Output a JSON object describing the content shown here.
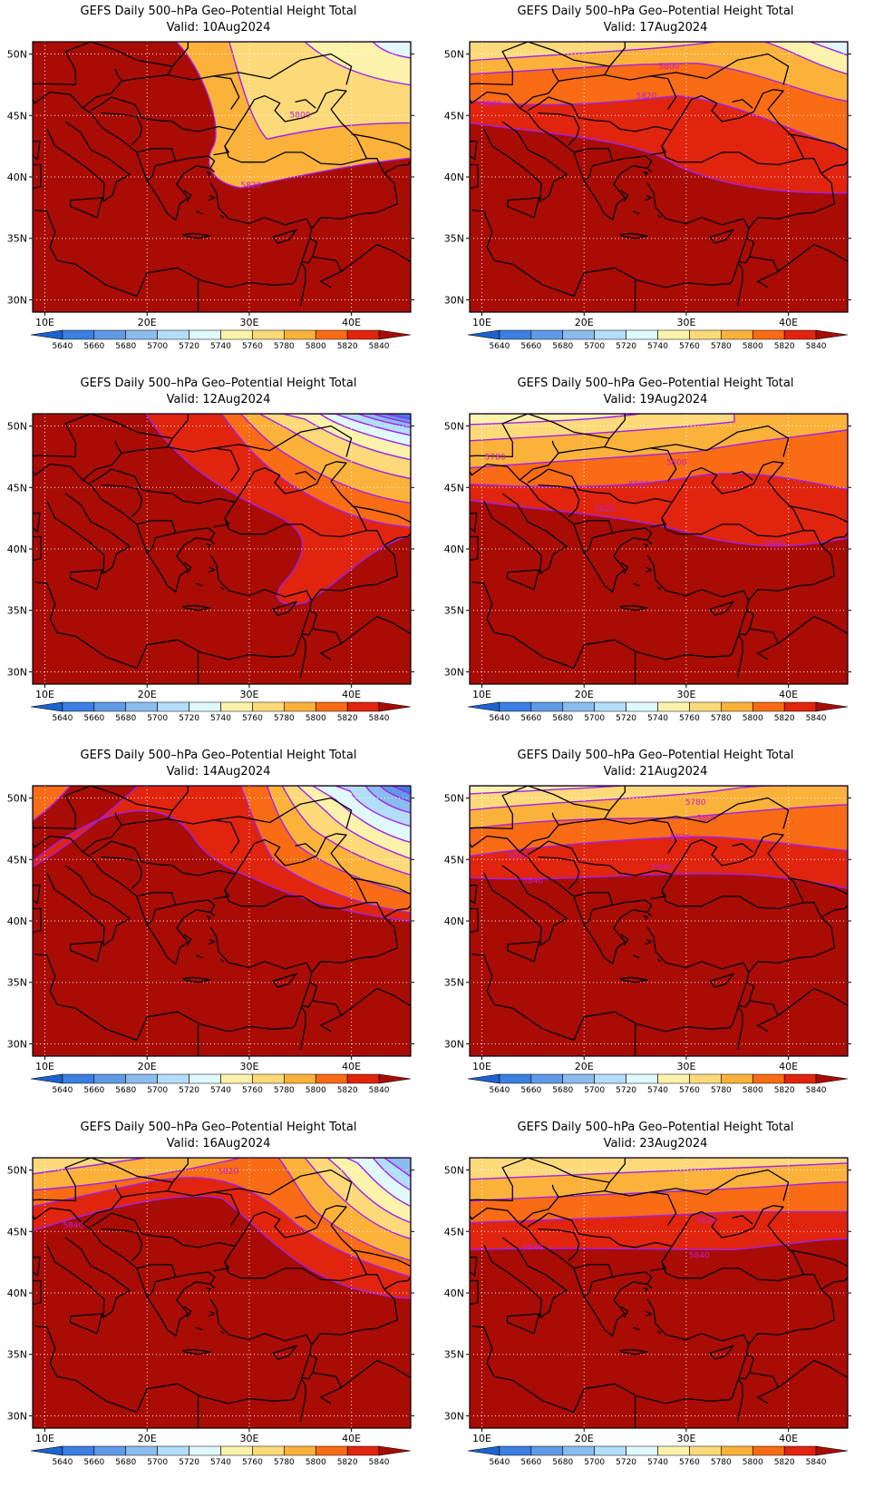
{
  "map_frame": {
    "lat_labels": [
      "50N",
      "45N",
      "40N",
      "35N",
      "30N"
    ],
    "lon_labels": [
      "10E",
      "20E",
      "30E",
      "40E"
    ],
    "colorbar_labels": [
      "5640",
      "5660",
      "5680",
      "5700",
      "5720",
      "5740",
      "5760",
      "5780",
      "5800",
      "5820",
      "5840"
    ],
    "palette": [
      "#1b63d1",
      "#3c7fe0",
      "#5f9ae6",
      "#8bbcee",
      "#b3defa",
      "#dff9fd",
      "#fbf3ab",
      "#fcda7a",
      "#fbb23b",
      "#f96b14",
      "#e0240e",
      "#a80c05"
    ],
    "contour_color": "#a020f0",
    "border_color": "#000000"
  },
  "panels": [
    {
      "title": "GEFS Daily 500–hPa Geo–Potential Height Total",
      "valid": "Valid:  10Aug2024",
      "contour_labels": [
        "5800",
        "5820"
      ]
    },
    {
      "title": "GEFS Daily 500–hPa Geo–Potential Height Total",
      "valid": "Valid:  17Aug2024",
      "contour_labels": [
        "5800",
        "5820",
        "5820"
      ]
    },
    {
      "title": "GEFS Daily 500–hPa Geo–Potential Height Total",
      "valid": "Valid:  12Aug2024",
      "contour_labels": []
    },
    {
      "title": "GEFS Daily 500–hPa Geo–Potential Height Total",
      "valid": "Valid:  19Aug2024",
      "contour_labels": [
        "5780",
        "5800",
        "5820",
        "5820",
        "5840"
      ]
    },
    {
      "title": "GEFS Daily 500–hPa Geo–Potential Height Total",
      "valid": "Valid:  14Aug2024",
      "contour_labels": []
    },
    {
      "title": "GEFS Daily 500–hPa Geo–Potential Height Total",
      "valid": "Valid:  21Aug2024",
      "contour_labels": [
        "5780",
        "5800",
        "5820",
        "5820",
        "5840",
        "5840"
      ]
    },
    {
      "title": "GEFS Daily 500–hPa Geo–Potential Height Total",
      "valid": "Valid:  16Aug2024",
      "contour_labels": [
        "5820",
        "5840"
      ]
    },
    {
      "title": "GEFS Daily 500–hPa Geo–Potential Height Total",
      "valid": "Valid:  23Aug2024",
      "contour_labels": [
        "5820",
        "5840",
        "5840"
      ]
    }
  ]
}
